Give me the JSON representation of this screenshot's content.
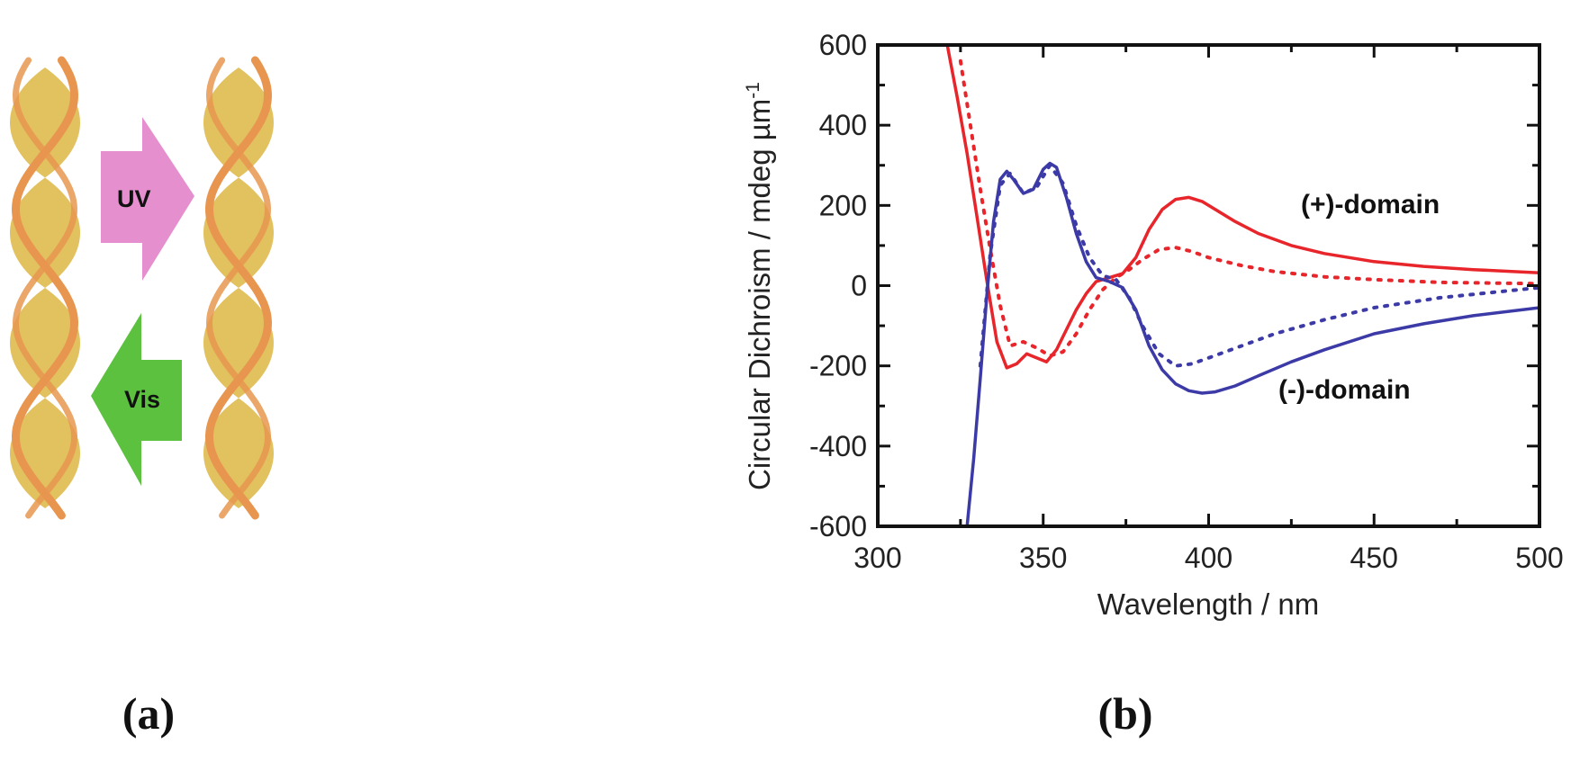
{
  "panels": {
    "a_label": "(a)",
    "b_label": "(b)"
  },
  "schematic": {
    "arrow_right_label": "UV",
    "arrow_left_label": "Vis",
    "helix_color": "#e2c15f",
    "ribbon_color": "#e8964f",
    "uv_arrow_color": "#e58fcf",
    "vis_arrow_color": "#5cc13f"
  },
  "chart_data": {
    "type": "line",
    "xlabel": "Wavelength / nm",
    "ylabel": "Circular Dichroism / mdeg µm",
    "ylabel_sup": "-1",
    "xlim": [
      300,
      500
    ],
    "ylim": [
      -600,
      600
    ],
    "xticks": [
      300,
      350,
      400,
      450,
      500
    ],
    "yticks": [
      600,
      400,
      200,
      0,
      -200,
      -400,
      -600
    ],
    "series": [
      {
        "name": "(+)-domain",
        "color": "#e8252a",
        "style": "solid",
        "label": "(+)-domain",
        "x": [
          321,
          324,
          327,
          330,
          333,
          336,
          339,
          342,
          345,
          348,
          351,
          354,
          357,
          360,
          363,
          366,
          370,
          374,
          378,
          382,
          386,
          390,
          394,
          398,
          402,
          408,
          415,
          425,
          435,
          450,
          465,
          480,
          500
        ],
        "y": [
          600,
          470,
          330,
          170,
          10,
          -140,
          -205,
          -195,
          -170,
          -180,
          -190,
          -160,
          -110,
          -60,
          -20,
          10,
          20,
          30,
          70,
          140,
          190,
          215,
          220,
          210,
          190,
          160,
          130,
          100,
          80,
          60,
          48,
          40,
          32
        ]
      },
      {
        "name": "(+)-domain dotted",
        "color": "#e8252a",
        "style": "dotted",
        "x": [
          325,
          328,
          331,
          334,
          337,
          340,
          344,
          348,
          352,
          356,
          360,
          364,
          368,
          372,
          376,
          380,
          385,
          390,
          395,
          400,
          410,
          420,
          435,
          450,
          470,
          500
        ],
        "y": [
          560,
          400,
          240,
          90,
          -50,
          -150,
          -140,
          -155,
          -175,
          -165,
          -120,
          -60,
          -10,
          20,
          40,
          65,
          90,
          95,
          85,
          70,
          50,
          35,
          22,
          15,
          8,
          5
        ]
      },
      {
        "name": "(-)-domain",
        "color": "#3c3aa6",
        "style": "solid",
        "label": "(-)-domain",
        "x": [
          327,
          329,
          331,
          333,
          335,
          337,
          339,
          341,
          344,
          347,
          350,
          352,
          354,
          357,
          360,
          363,
          366,
          370,
          374,
          378,
          382,
          386,
          390,
          394,
          398,
          402,
          408,
          415,
          425,
          435,
          450,
          465,
          480,
          500
        ],
        "y": [
          -600,
          -430,
          -230,
          -20,
          160,
          265,
          285,
          265,
          230,
          240,
          290,
          305,
          295,
          220,
          130,
          60,
          20,
          10,
          -5,
          -60,
          -150,
          -210,
          -245,
          -262,
          -268,
          -265,
          -250,
          -225,
          -190,
          -160,
          -120,
          -95,
          -75,
          -55
        ]
      },
      {
        "name": "(-)-domain dotted",
        "color": "#3c3aa6",
        "style": "dotted",
        "x": [
          331,
          334,
          337,
          340,
          344,
          348,
          352,
          356,
          360,
          364,
          368,
          372,
          376,
          380,
          385,
          390,
          395,
          400,
          410,
          420,
          435,
          450,
          470,
          500
        ],
        "y": [
          -200,
          80,
          250,
          280,
          230,
          245,
          300,
          255,
          150,
          70,
          25,
          15,
          -30,
          -100,
          -170,
          -200,
          -195,
          -180,
          -150,
          -120,
          -85,
          -55,
          -30,
          -5
        ]
      }
    ]
  }
}
